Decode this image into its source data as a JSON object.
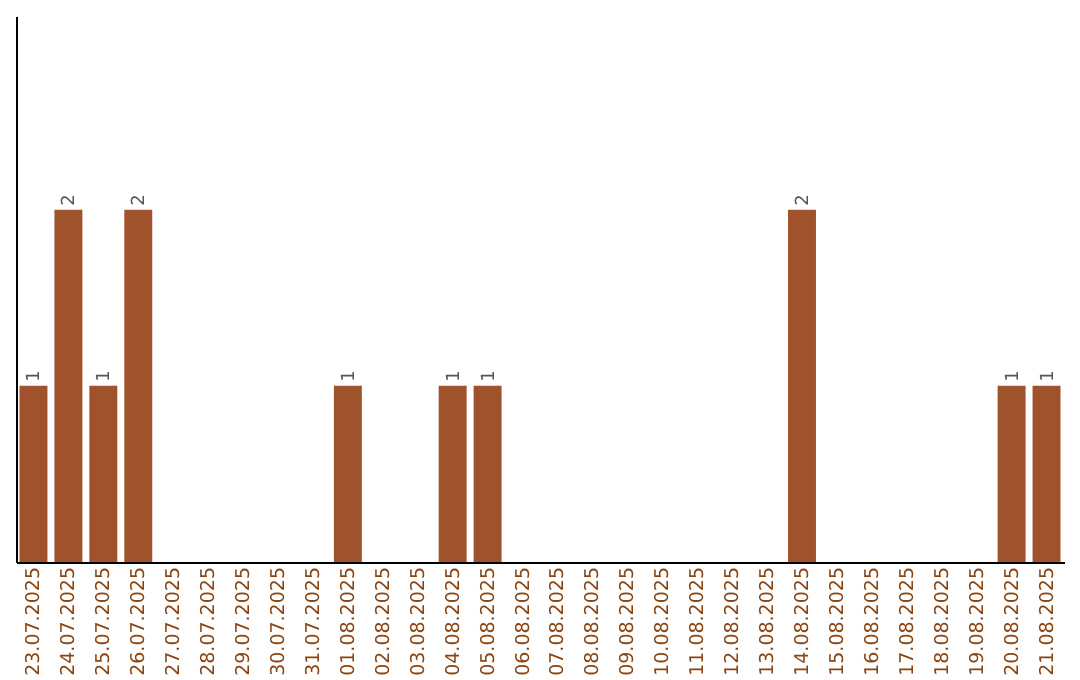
{
  "chart_data": {
    "type": "bar",
    "categories": [
      "23.07.2025",
      "24.07.2025",
      "25.07.2025",
      "26.07.2025",
      "27.07.2025",
      "28.07.2025",
      "29.07.2025",
      "30.07.2025",
      "31.07.2025",
      "01.08.2025",
      "02.08.2025",
      "03.08.2025",
      "04.08.2025",
      "05.08.2025",
      "06.08.2025",
      "07.08.2025",
      "08.08.2025",
      "09.08.2025",
      "10.08.2025",
      "11.08.2025",
      "12.08.2025",
      "13.08.2025",
      "14.08.2025",
      "15.08.2025",
      "16.08.2025",
      "17.08.2025",
      "18.08.2025",
      "19.08.2025",
      "20.08.2025",
      "21.08.2025"
    ],
    "values": [
      1,
      2,
      1,
      2,
      0,
      0,
      0,
      0,
      0,
      1,
      0,
      0,
      1,
      1,
      0,
      0,
      0,
      0,
      0,
      0,
      0,
      0,
      2,
      0,
      0,
      0,
      0,
      0,
      1,
      1
    ],
    "value_labels": [
      "1",
      "2",
      "1",
      "2",
      null,
      null,
      null,
      null,
      null,
      "1",
      null,
      null,
      "1",
      "1",
      null,
      null,
      null,
      null,
      null,
      null,
      null,
      null,
      "2",
      null,
      null,
      null,
      null,
      null,
      "1",
      "1"
    ],
    "color": "#a0522d",
    "ylim": [
      0,
      3.1
    ],
    "tick_labels": "x",
    "grid": false
  }
}
